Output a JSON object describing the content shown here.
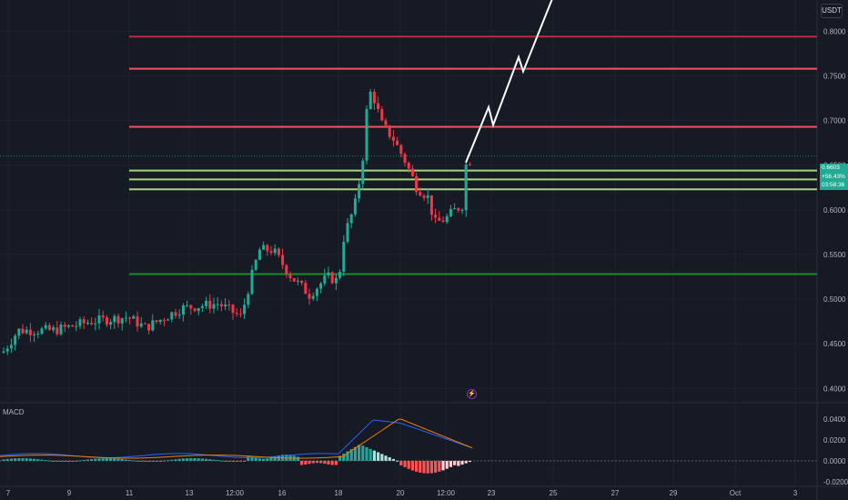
{
  "currency_badge": "USDT",
  "macd_label": "MACD",
  "price_tag": {
    "price": "0.6603",
    "change": "+56.43%",
    "countdown": "03:58:36"
  },
  "flash_icon": "lightning-icon",
  "colors": {
    "bg": "#161a25",
    "grid": "#1f2330",
    "up": "#22ab94",
    "down": "#f23645",
    "res_dark": "#c2273f",
    "res_light": "#f7525f",
    "sup_light": "#a5d67b",
    "sup_dark": "#1e8a2a",
    "projection": "#ffffff",
    "macd_line": "#2962ff",
    "signal_line": "#f57c00",
    "hist_up_strong": "#26a69a",
    "hist_up_weak": "#b2dfdb",
    "hist_down_strong": "#ff5252",
    "hist_down_weak": "#ffcdd2"
  },
  "chart_data": {
    "type": "candlestick",
    "price_axis": {
      "ticks": [
        "0.8000",
        "0.7500",
        "0.7000",
        "0.6500",
        "0.6000",
        "0.5500",
        "0.5000",
        "0.4500",
        "0.4000"
      ],
      "ylim": [
        0.385,
        0.835
      ]
    },
    "time_axis": {
      "ticks": [
        "7",
        "9",
        "11",
        "13",
        "12:00",
        "16",
        "18",
        "20",
        "12:00",
        "23",
        "25",
        "27",
        "29",
        "Oct",
        "3"
      ]
    },
    "macd_axis": {
      "ticks": [
        "0.0400",
        "0.0200",
        "0.0000",
        "-0.0200"
      ]
    },
    "horizontal_levels": [
      {
        "kind": "resistance",
        "price": 0.794,
        "color": "#c2273f"
      },
      {
        "kind": "resistance",
        "price": 0.758,
        "color": "#f7525f"
      },
      {
        "kind": "resistance",
        "price": 0.693,
        "color": "#f7525f"
      },
      {
        "kind": "support",
        "price": 0.644,
        "color": "#a5d67b"
      },
      {
        "kind": "support",
        "price": 0.634,
        "color": "#a5d67b"
      },
      {
        "kind": "support",
        "price": 0.623,
        "color": "#a5d67b"
      },
      {
        "kind": "support",
        "price": 0.528,
        "color": "#1e8a2a"
      }
    ],
    "last_price": 0.6603,
    "projection_path": [
      0.653,
      0.715,
      0.695,
      0.771,
      0.755,
      0.839
    ]
  }
}
